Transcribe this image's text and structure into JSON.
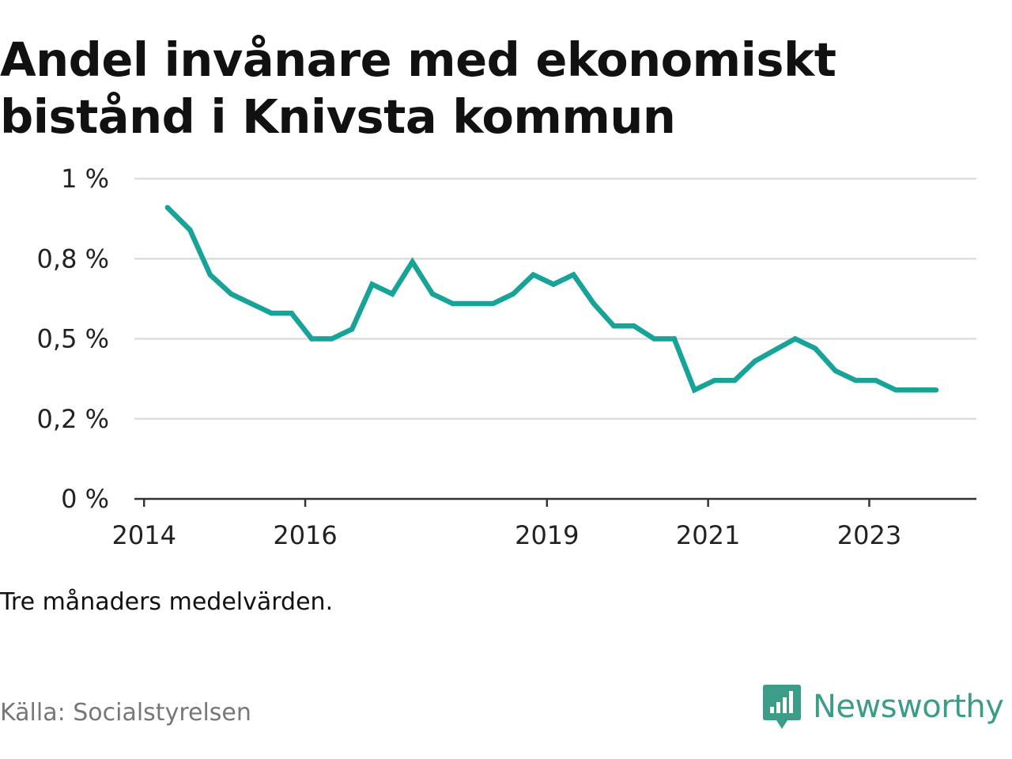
{
  "title": "Andel invånare med ekonomiskt bistånd i Knivsta kommun",
  "note": "Tre månaders medelvärden.",
  "source": "Källa: Socialstyrelsen",
  "brand": {
    "name": "Newsworthy",
    "icon": "newsworthy-logo-icon"
  },
  "colors": {
    "line": "#17a398",
    "grid": "#dddddd",
    "axis": "#333333",
    "brand": "#3b9c88"
  },
  "chart_data": {
    "type": "line",
    "title": "Andel invånare med ekonomiskt bistånd i Knivsta kommun",
    "ylabel": "",
    "xlabel": "",
    "ylim": [
      0,
      1
    ],
    "grid": true,
    "yticks": [
      {
        "value": 0,
        "label": "0 %"
      },
      {
        "value": 0.25,
        "label": "0,2 %"
      },
      {
        "value": 0.5,
        "label": "0,5 %"
      },
      {
        "value": 0.75,
        "label": "0,8 %"
      },
      {
        "value": 1,
        "label": "1 %"
      }
    ],
    "xticks": [
      {
        "value": 2014,
        "label": "2014"
      },
      {
        "value": 2016,
        "label": "2016"
      },
      {
        "value": 2019,
        "label": "2019"
      },
      {
        "value": 2021,
        "label": "2021"
      },
      {
        "value": 2023,
        "label": "2023"
      }
    ],
    "xlim": [
      2013.88,
      2024.33
    ],
    "series": [
      {
        "x": [
          2014.29,
          2014.57,
          2014.82,
          2015.08,
          2015.33,
          2015.58,
          2015.83,
          2016.08,
          2016.33,
          2016.58,
          2016.83,
          2017.08,
          2017.33,
          2017.58,
          2017.83,
          2018.08,
          2018.33,
          2018.58,
          2018.83,
          2019.08,
          2019.33,
          2019.58,
          2019.83,
          2020.08,
          2020.33,
          2020.58,
          2020.83,
          2021.08,
          2021.33,
          2021.58,
          2021.83,
          2022.08,
          2022.33,
          2022.58,
          2022.83,
          2023.08,
          2023.33,
          2023.58,
          2023.83
        ],
        "values": [
          0.91,
          0.84,
          0.7,
          0.64,
          0.61,
          0.58,
          0.58,
          0.5,
          0.5,
          0.53,
          0.67,
          0.64,
          0.74,
          0.64,
          0.61,
          0.61,
          0.61,
          0.64,
          0.7,
          0.67,
          0.7,
          0.61,
          0.54,
          0.54,
          0.5,
          0.5,
          0.34,
          0.37,
          0.37,
          0.43,
          0.465,
          0.5,
          0.47,
          0.4,
          0.37,
          0.37,
          0.34,
          0.34,
          0.34
        ]
      }
    ]
  }
}
